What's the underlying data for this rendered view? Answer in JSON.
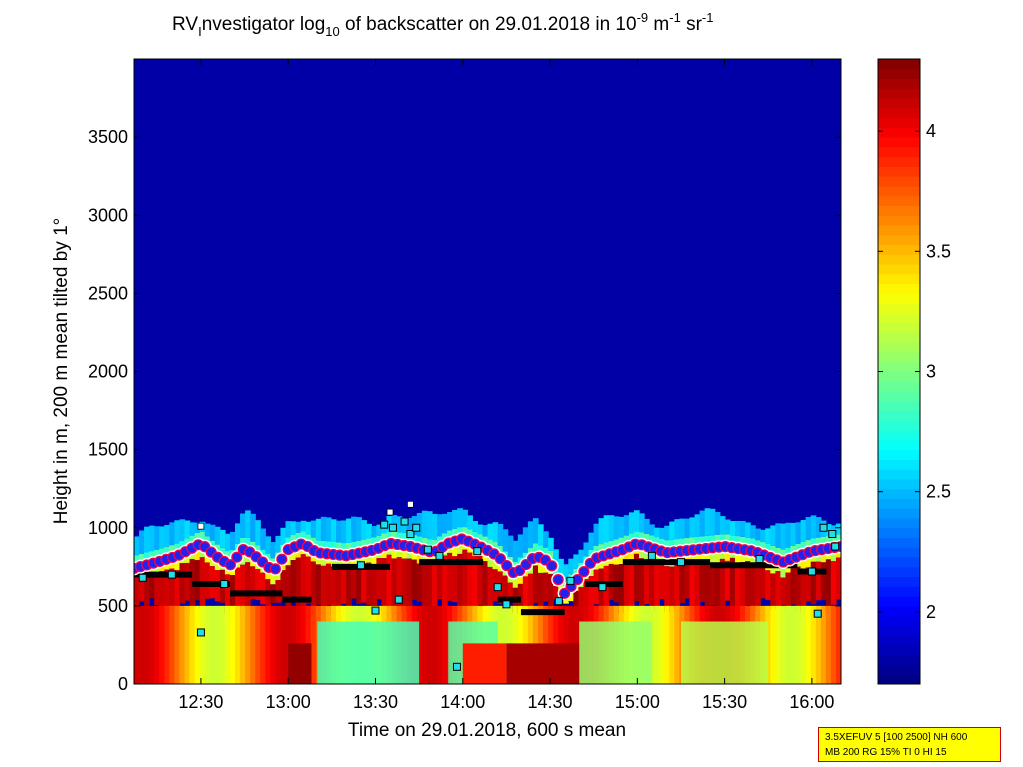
{
  "chart_data": {
    "type": "heatmap",
    "title": {
      "pre": "RV",
      "sub1": "I",
      "mid": "nvestigator log",
      "sub2": "10",
      "mid2": " of backscatter on 29.01.2018 in 10",
      "sup1": "-9",
      "mid3": " m",
      "sup2": "-1",
      "mid4": " sr",
      "sup3": "-1"
    },
    "xlabel": "Time on 29.01.2018, 600 s mean",
    "ylabel": "Height in m, 200 m mean tilted by 1°",
    "x_range": [
      "12:07",
      "16:10"
    ],
    "x_ticks": [
      "12:30",
      "13:00",
      "13:30",
      "14:00",
      "14:30",
      "15:00",
      "15:30",
      "16:00"
    ],
    "y_range": [
      0,
      4000
    ],
    "y_ticks": [
      0,
      500,
      1000,
      1500,
      2000,
      2500,
      3000,
      3500
    ],
    "colorbar": {
      "range": [
        1.7,
        4.3
      ],
      "ticks": [
        2,
        2.5,
        3,
        3.5,
        4
      ],
      "colormap": "jet"
    },
    "background_value": 1.8,
    "cloud_top_profile": [
      {
        "t": "12:07",
        "h": 740
      },
      {
        "t": "12:15",
        "h": 780
      },
      {
        "t": "12:22",
        "h": 820
      },
      {
        "t": "12:30",
        "h": 900
      },
      {
        "t": "12:35",
        "h": 820
      },
      {
        "t": "12:40",
        "h": 760
      },
      {
        "t": "12:45",
        "h": 870
      },
      {
        "t": "12:50",
        "h": 800
      },
      {
        "t": "12:55",
        "h": 720
      },
      {
        "t": "13:00",
        "h": 860
      },
      {
        "t": "13:05",
        "h": 900
      },
      {
        "t": "13:10",
        "h": 840
      },
      {
        "t": "13:20",
        "h": 820
      },
      {
        "t": "13:30",
        "h": 860
      },
      {
        "t": "13:35",
        "h": 900
      },
      {
        "t": "13:42",
        "h": 880
      },
      {
        "t": "13:50",
        "h": 840
      },
      {
        "t": "13:55",
        "h": 900
      },
      {
        "t": "14:00",
        "h": 930
      },
      {
        "t": "14:07",
        "h": 870
      },
      {
        "t": "14:12",
        "h": 820
      },
      {
        "t": "14:18",
        "h": 700
      },
      {
        "t": "14:25",
        "h": 820
      },
      {
        "t": "14:30",
        "h": 780
      },
      {
        "t": "14:35",
        "h": 580
      },
      {
        "t": "14:40",
        "h": 680
      },
      {
        "t": "14:45",
        "h": 800
      },
      {
        "t": "14:55",
        "h": 860
      },
      {
        "t": "15:00",
        "h": 900
      },
      {
        "t": "15:10",
        "h": 840
      },
      {
        "t": "15:20",
        "h": 860
      },
      {
        "t": "15:30",
        "h": 880
      },
      {
        "t": "15:40",
        "h": 850
      },
      {
        "t": "15:50",
        "h": 780
      },
      {
        "t": "16:00",
        "h": 850
      },
      {
        "t": "16:10",
        "h": 880
      }
    ],
    "boundary_layer_steps": [
      {
        "t0": "12:07",
        "t1": "12:27",
        "h": 700
      },
      {
        "t0": "12:27",
        "t1": "12:40",
        "h": 640
      },
      {
        "t0": "12:40",
        "t1": "12:58",
        "h": 580
      },
      {
        "t0": "12:58",
        "t1": "13:08",
        "h": 540
      },
      {
        "t0": "13:15",
        "t1": "13:35",
        "h": 750
      },
      {
        "t0": "13:45",
        "t1": "14:07",
        "h": 780
      },
      {
        "t0": "14:12",
        "t1": "14:20",
        "h": 540
      },
      {
        "t0": "14:20",
        "t1": "14:35",
        "h": 460
      },
      {
        "t0": "14:42",
        "t1": "14:55",
        "h": 640
      },
      {
        "t0": "14:55",
        "t1": "15:25",
        "h": 780
      },
      {
        "t0": "15:25",
        "t1": "15:55",
        "h": 760
      },
      {
        "t0": "15:55",
        "t1": "16:05",
        "h": 720
      }
    ],
    "scatter_points": [
      {
        "t": "12:10",
        "h": 680
      },
      {
        "t": "12:20",
        "h": 700
      },
      {
        "t": "12:30",
        "h": 330
      },
      {
        "t": "12:38",
        "h": 640
      },
      {
        "t": "13:25",
        "h": 760
      },
      {
        "t": "13:30",
        "h": 470
      },
      {
        "t": "13:33",
        "h": 1020
      },
      {
        "t": "13:36",
        "h": 1000
      },
      {
        "t": "13:38",
        "h": 540
      },
      {
        "t": "13:40",
        "h": 1040
      },
      {
        "t": "13:42",
        "h": 960
      },
      {
        "t": "13:44",
        "h": 1000
      },
      {
        "t": "13:48",
        "h": 860
      },
      {
        "t": "13:52",
        "h": 820
      },
      {
        "t": "13:58",
        "h": 110
      },
      {
        "t": "14:05",
        "h": 850
      },
      {
        "t": "14:12",
        "h": 620
      },
      {
        "t": "14:15",
        "h": 510
      },
      {
        "t": "14:33",
        "h": 530
      },
      {
        "t": "14:37",
        "h": 660
      },
      {
        "t": "14:48",
        "h": 620
      },
      {
        "t": "15:05",
        "h": 820
      },
      {
        "t": "15:15",
        "h": 780
      },
      {
        "t": "15:42",
        "h": 800
      },
      {
        "t": "16:00",
        "h": 720
      },
      {
        "t": "16:02",
        "h": 450
      },
      {
        "t": "16:04",
        "h": 1000
      },
      {
        "t": "16:07",
        "h": 960
      },
      {
        "t": "16:08",
        "h": 880
      }
    ],
    "white_points": [
      {
        "t": "12:30",
        "h": 1010
      },
      {
        "t": "13:42",
        "h": 1150
      },
      {
        "t": "13:35",
        "h": 1100
      }
    ],
    "colors": {
      "cloud_top_fill": "#2222ee",
      "cloud_top_edge": "#ff0044",
      "cloud_top_halo": "#ffffff",
      "step_line": "#000000",
      "scatter_fill": "#22ddee",
      "white_marker": "#ffffff"
    }
  },
  "info_box": {
    "line1": "3.5XEFUV 5 [100 2500] NH 600",
    "line2": "MB 200 RG 15% TI 0 HI 15"
  }
}
